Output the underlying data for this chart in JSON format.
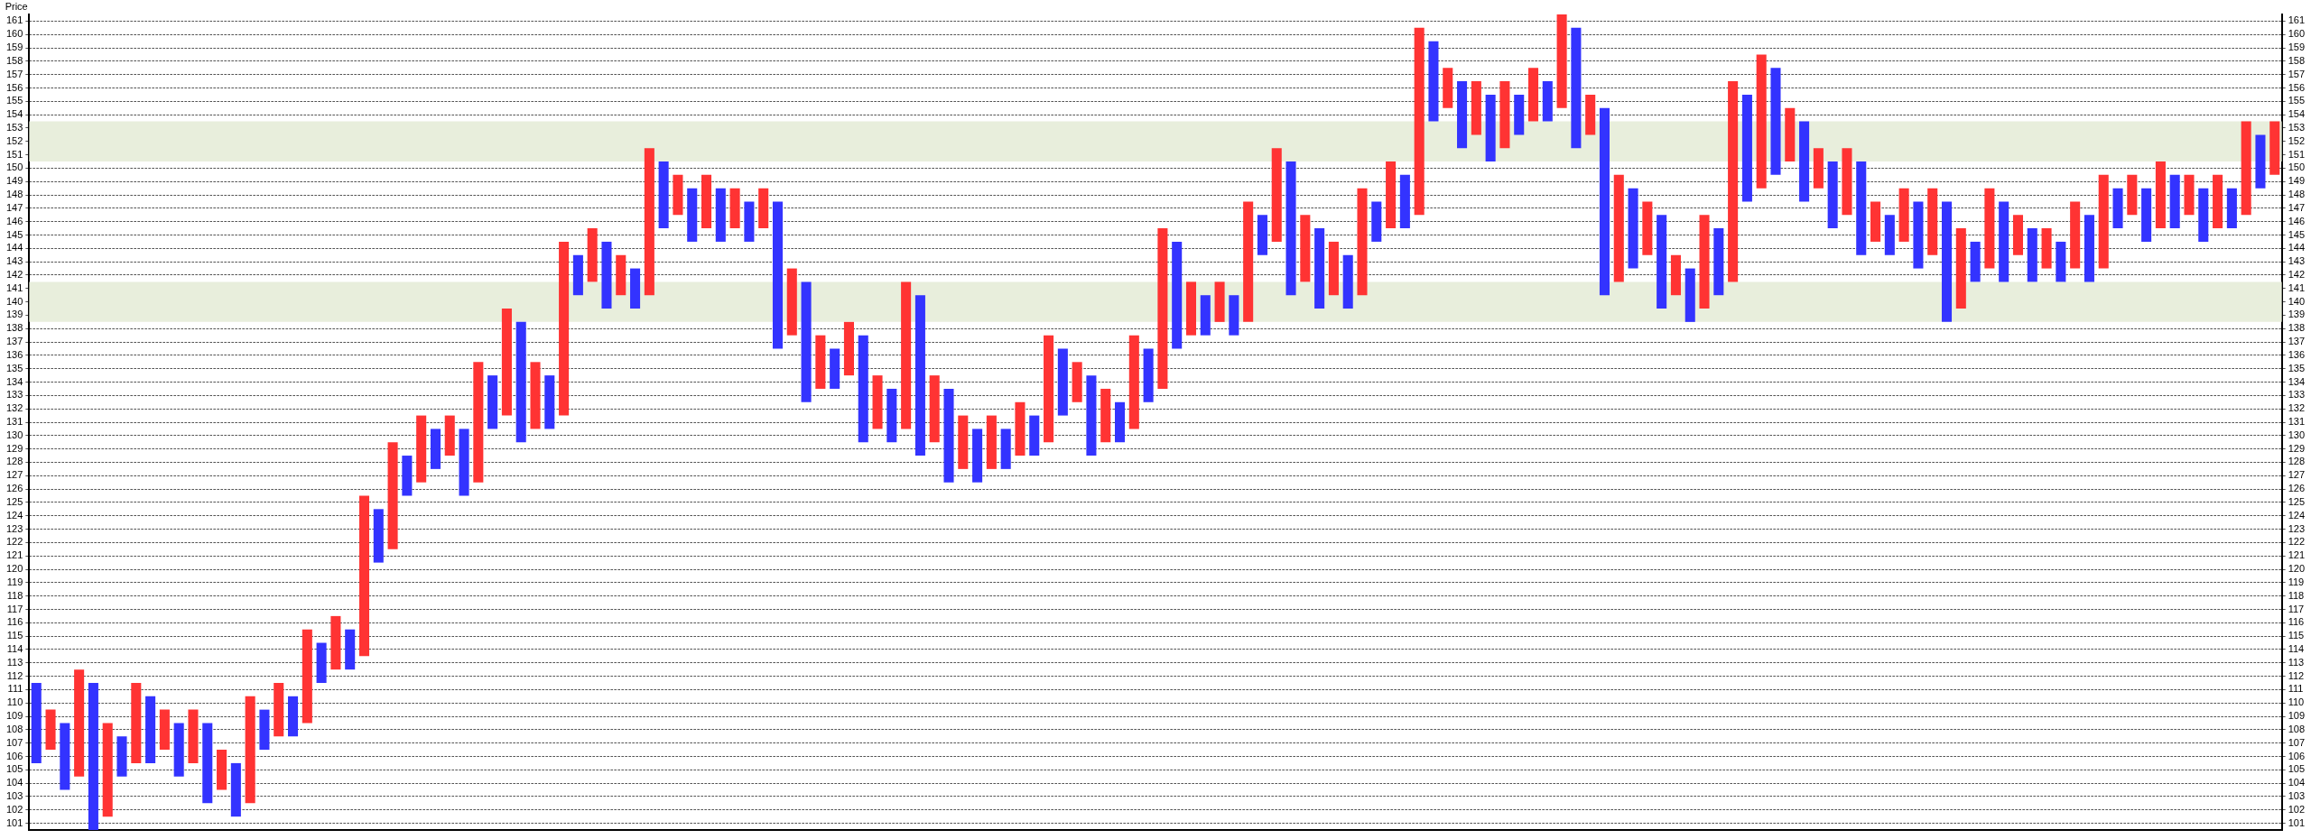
{
  "chart_data": {
    "type": "bar",
    "ylabel": "Price",
    "tick_labels": "y",
    "grid": "y",
    "categories": [
      null,
      null,
      null,
      null,
      null,
      null,
      null,
      null,
      null,
      null,
      null,
      null,
      null,
      null,
      null,
      null,
      null,
      null,
      null,
      null,
      null,
      null,
      null,
      null,
      null,
      null,
      null,
      null,
      null,
      null,
      null,
      null,
      null,
      null,
      null,
      null,
      null,
      null,
      null,
      null,
      null,
      null,
      null,
      null,
      null,
      null,
      null,
      null,
      null,
      null,
      null,
      null,
      null,
      null,
      null,
      null,
      null,
      null,
      null,
      null,
      null,
      null,
      null,
      null,
      null,
      null,
      null,
      null,
      null,
      null,
      null,
      null,
      null,
      null,
      null,
      null,
      null,
      null,
      null,
      null,
      null,
      null,
      null,
      null,
      null,
      null,
      null,
      null,
      null,
      null,
      null,
      null,
      null,
      null,
      null,
      null,
      null,
      null,
      null,
      null,
      null,
      null,
      null,
      null,
      null,
      null,
      null,
      null,
      null,
      null,
      null,
      null,
      null,
      null,
      null,
      null,
      null,
      null,
      null,
      null,
      null,
      null,
      null,
      null,
      null,
      null,
      null,
      null,
      null,
      null,
      null,
      null,
      null,
      null,
      null,
      null,
      null,
      null,
      null,
      null,
      null,
      null,
      null,
      null,
      null,
      null,
      null,
      null,
      null,
      null,
      null,
      null,
      null,
      null,
      null,
      null,
      null,
      null
    ],
    "base": [
      105.5,
      106.5,
      103.5,
      104.5,
      100.5,
      101.5,
      104.5,
      105.5,
      105.5,
      106.5,
      104.5,
      105.5,
      102.5,
      103.5,
      101.5,
      102.5,
      106.5,
      107.5,
      107.5,
      108.5,
      111.5,
      112.5,
      112.5,
      113.5,
      120.5,
      121.5,
      125.5,
      126.5,
      127.5,
      128.5,
      125.5,
      126.5,
      130.5,
      131.5,
      129.5,
      130.5,
      130.5,
      131.5,
      140.5,
      141.5,
      139.5,
      140.5,
      139.5,
      140.5,
      145.5,
      146.5,
      144.5,
      145.5,
      144.5,
      145.5,
      144.5,
      145.5,
      136.5,
      137.5,
      132.5,
      133.5,
      133.5,
      134.5,
      129.5,
      130.5,
      129.5,
      130.5,
      128.5,
      129.5,
      126.5,
      127.5,
      126.5,
      127.5,
      127.5,
      128.5,
      128.5,
      129.5,
      131.5,
      132.5,
      128.5,
      129.5,
      129.5,
      130.5,
      132.5,
      133.5,
      136.5,
      137.5,
      137.5,
      138.5,
      137.5,
      138.5,
      143.5,
      144.5,
      140.5,
      141.5,
      139.5,
      140.5,
      139.5,
      140.5,
      144.5,
      145.5,
      145.5,
      146.5,
      153.5,
      154.5,
      151.5,
      152.5,
      150.5,
      151.5,
      152.5,
      153.5,
      153.5,
      154.5,
      151.5,
      152.5,
      140.5,
      141.5,
      142.5,
      143.5,
      139.5,
      140.5,
      138.5,
      139.5,
      140.5,
      141.5,
      147.5,
      148.5,
      149.5,
      150.5,
      147.5,
      148.5,
      145.5,
      146.5,
      143.5,
      144.5,
      143.5,
      144.5,
      142.5,
      143.5,
      138.5,
      139.5,
      141.5,
      142.5,
      141.5,
      143.5,
      141.5,
      142.5,
      141.5,
      142.5,
      141.5,
      142.5,
      145.5,
      146.5,
      144.5,
      145.5,
      145.5,
      146.5,
      144.5,
      145.5,
      145.5,
      146.5,
      148.5,
      149.5
    ],
    "values": [
      6,
      3,
      5,
      8,
      11,
      7,
      3,
      6,
      5,
      3,
      4,
      4,
      6,
      3,
      4,
      8,
      3,
      4,
      3,
      7,
      3,
      4,
      3,
      12,
      4,
      8,
      3,
      5,
      3,
      3,
      5,
      9,
      4,
      8,
      9,
      5,
      4,
      13,
      3,
      4,
      5,
      3,
      3,
      11,
      5,
      3,
      4,
      4,
      4,
      3,
      3,
      3,
      11,
      5,
      9,
      4,
      3,
      4,
      8,
      4,
      4,
      11,
      12,
      5,
      7,
      4,
      4,
      4,
      3,
      4,
      3,
      8,
      5,
      3,
      6,
      4,
      3,
      7,
      4,
      12,
      8,
      4,
      3,
      3,
      3,
      9,
      3,
      7,
      10,
      5,
      6,
      4,
      4,
      8,
      3,
      5,
      4,
      14,
      6,
      3,
      5,
      4,
      5,
      5,
      3,
      4,
      3,
      7,
      9,
      3,
      14,
      8,
      6,
      4,
      7,
      3,
      4,
      7,
      5,
      15,
      8,
      10,
      8,
      4,
      6,
      3,
      5,
      5,
      7,
      3,
      3,
      4,
      5,
      5,
      9,
      6,
      3,
      6,
      6,
      3,
      4,
      3,
      3,
      5,
      5,
      7,
      3,
      3,
      4,
      5,
      4,
      3,
      4,
      4,
      3,
      7,
      4,
      4
    ],
    "colors": [
      "#3333ff",
      "#ff3333",
      "#3333ff",
      "#ff3333",
      "#3333ff",
      "#ff3333",
      "#3333ff",
      "#ff3333",
      "#3333ff",
      "#ff3333",
      "#3333ff",
      "#ff3333",
      "#3333ff",
      "#ff3333",
      "#3333ff",
      "#ff3333",
      "#3333ff",
      "#ff3333",
      "#3333ff",
      "#ff3333",
      "#3333ff",
      "#ff3333",
      "#3333ff",
      "#ff3333",
      "#3333ff",
      "#ff3333",
      "#3333ff",
      "#ff3333",
      "#3333ff",
      "#ff3333",
      "#3333ff",
      "#ff3333",
      "#3333ff",
      "#ff3333",
      "#3333ff",
      "#ff3333",
      "#3333ff",
      "#ff3333",
      "#3333ff",
      "#ff3333",
      "#3333ff",
      "#ff3333",
      "#3333ff",
      "#ff3333",
      "#3333ff",
      "#ff3333",
      "#3333ff",
      "#ff3333",
      "#3333ff",
      "#ff3333",
      "#3333ff",
      "#ff3333",
      "#3333ff",
      "#ff3333",
      "#3333ff",
      "#ff3333",
      "#3333ff",
      "#ff3333",
      "#3333ff",
      "#ff3333",
      "#3333ff",
      "#ff3333",
      "#3333ff",
      "#ff3333",
      "#3333ff",
      "#ff3333",
      "#3333ff",
      "#ff3333",
      "#3333ff",
      "#ff3333",
      "#3333ff",
      "#ff3333",
      "#3333ff",
      "#ff3333",
      "#3333ff",
      "#ff3333",
      "#3333ff",
      "#ff3333",
      "#3333ff",
      "#ff3333",
      "#3333ff",
      "#ff3333",
      "#3333ff",
      "#ff3333",
      "#3333ff",
      "#ff3333",
      "#3333ff",
      "#ff3333",
      "#3333ff",
      "#ff3333",
      "#3333ff",
      "#ff3333",
      "#3333ff",
      "#ff3333",
      "#3333ff",
      "#ff3333",
      "#3333ff",
      "#ff3333",
      "#3333ff",
      "#ff3333",
      "#3333ff",
      "#ff3333",
      "#3333ff",
      "#ff3333",
      "#3333ff",
      "#ff3333",
      "#3333ff",
      "#ff3333",
      "#3333ff",
      "#ff3333",
      "#3333ff",
      "#ff3333",
      "#3333ff",
      "#ff3333",
      "#3333ff",
      "#ff3333",
      "#3333ff",
      "#ff3333",
      "#3333ff",
      "#ff3333",
      "#3333ff",
      "#ff3333",
      "#3333ff",
      "#ff3333",
      "#3333ff",
      "#ff3333",
      "#3333ff",
      "#ff3333",
      "#3333ff",
      "#ff3333",
      "#3333ff",
      "#ff3333",
      "#3333ff",
      "#ff3333",
      "#3333ff",
      "#ff3333",
      "#3333ff",
      "#ff3333",
      "#3333ff",
      "#ff3333",
      "#3333ff",
      "#ff3333",
      "#3333ff",
      "#ff3333",
      "#3333ff",
      "#ff3333",
      "#3333ff",
      "#ff3333",
      "#3333ff",
      "#ff3333",
      "#3333ff",
      "#ff3333",
      "#3333ff",
      "#ff3333",
      "#3333ff",
      "#ff3333",
      "#3333ff",
      "#ff3333"
    ],
    "bands": [
      {
        "axis": "y",
        "from": 138.5,
        "to": 141.5,
        "color": "#e8eedc"
      },
      {
        "axis": "y",
        "from": 150.5,
        "to": 153.5,
        "color": "#e8eedc"
      }
    ],
    "ylim": [
      100.5,
      161.5
    ],
    "yticks": [
      101,
      102,
      103,
      104,
      105,
      106,
      107,
      108,
      109,
      110,
      111,
      112,
      113,
      114,
      115,
      116,
      117,
      118,
      119,
      120,
      121,
      122,
      123,
      124,
      125,
      126,
      127,
      128,
      129,
      130,
      131,
      132,
      133,
      134,
      135,
      136,
      137,
      138,
      139,
      140,
      141,
      142,
      143,
      144,
      145,
      146,
      147,
      148,
      149,
      150,
      151,
      152,
      153,
      154,
      155,
      156,
      157,
      158,
      159,
      160,
      161
    ],
    "y2lim": [
      100.5,
      161.5
    ],
    "y2ticks": [
      101,
      102,
      103,
      104,
      105,
      106,
      107,
      108,
      109,
      110,
      111,
      112,
      113,
      114,
      115,
      116,
      117,
      118,
      119,
      120,
      121,
      122,
      123,
      124,
      125,
      126,
      127,
      128,
      129,
      130,
      131,
      132,
      133,
      134,
      135,
      136,
      137,
      138,
      139,
      140,
      141,
      142,
      143,
      144,
      145,
      146,
      147,
      148,
      149,
      150,
      151,
      152,
      153,
      154,
      155,
      156,
      157,
      158,
      159,
      160,
      161
    ]
  }
}
